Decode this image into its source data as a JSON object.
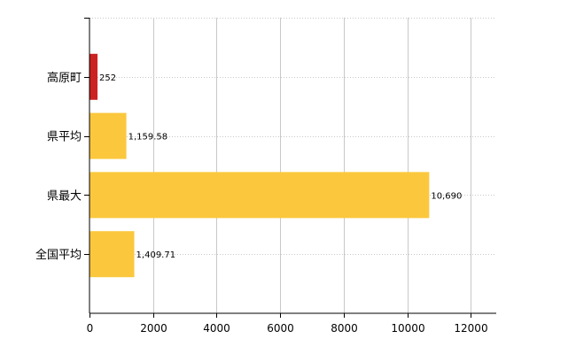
{
  "chart_data": {
    "type": "bar",
    "orientation": "horizontal",
    "categories": [
      "高原町",
      "県平均",
      "県最大",
      "全国平均"
    ],
    "values": [
      252,
      1159.58,
      10690,
      1409.71
    ],
    "value_labels": [
      "252",
      "1,159.58",
      "10,690",
      "1,409.71"
    ],
    "bar_colors": [
      "#cc2222",
      "#fbc83d",
      "#fbc83d",
      "#fbc83d"
    ],
    "xlim": [
      0,
      12800
    ],
    "xticks": [
      0,
      2000,
      4000,
      6000,
      8000,
      10000,
      12000
    ],
    "xtick_labels": [
      "0",
      "2000",
      "4000",
      "6000",
      "8000",
      "10000",
      "12000"
    ],
    "grid": true,
    "legend": "none"
  }
}
